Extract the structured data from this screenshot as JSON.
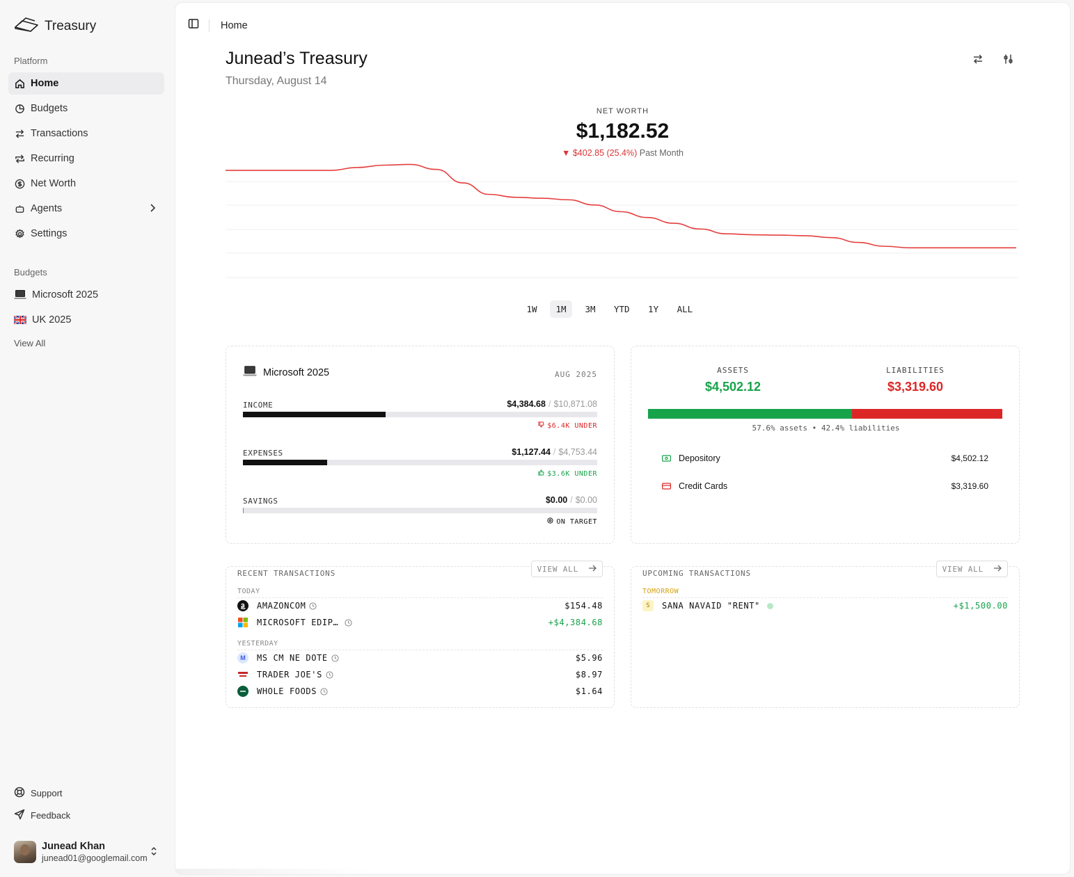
{
  "app": {
    "name": "Treasury"
  },
  "sidebar": {
    "platform_label": "Platform",
    "items": [
      {
        "label": "Home",
        "icon": "home-icon",
        "active": true
      },
      {
        "label": "Budgets",
        "icon": "pie-chart-icon"
      },
      {
        "label": "Transactions",
        "icon": "arrows-exchange-icon"
      },
      {
        "label": "Recurring",
        "icon": "repeat-icon"
      },
      {
        "label": "Net Worth",
        "icon": "dollar-circle-icon"
      },
      {
        "label": "Agents",
        "icon": "bot-icon",
        "has_submenu": true
      },
      {
        "label": "Settings",
        "icon": "gear-icon"
      }
    ],
    "budgets_label": "Budgets",
    "budgets": [
      {
        "label": "Microsoft 2025",
        "icon": "laptop-emoji"
      },
      {
        "label": "UK 2025",
        "icon": "uk-flag-emoji"
      }
    ],
    "view_all": "View All",
    "support": "Support",
    "feedback": "Feedback",
    "user": {
      "name": "Junead Khan",
      "email": "junead01@googlemail.com"
    }
  },
  "header": {
    "breadcrumb": "Home",
    "title": "Junead’s Treasury",
    "date": "Thursday, August 14"
  },
  "net_worth": {
    "label": "NET WORTH",
    "value": "$1,182.52",
    "change": "▼ $402.85 (25.4%)",
    "period": "Past Month"
  },
  "chart_data": {
    "type": "line",
    "title": "",
    "xlabel": "",
    "ylabel": "",
    "x": [
      0,
      1,
      2,
      3,
      4,
      5,
      6,
      7,
      8,
      9,
      10,
      11,
      12,
      13,
      14,
      15,
      16,
      17,
      18,
      19,
      20,
      21,
      22,
      23,
      24,
      25,
      26,
      27,
      28,
      29,
      30
    ],
    "series": [
      {
        "values": [
          1585,
          1585,
          1585,
          1585,
          1585,
          1600,
          1612,
          1616,
          1590,
          1520,
          1460,
          1445,
          1440,
          1432,
          1405,
          1370,
          1340,
          1310,
          1280,
          1255,
          1250,
          1248,
          1245,
          1235,
          1210,
          1190,
          1182,
          1182,
          1182,
          1182,
          1182
        ]
      }
    ],
    "ylim": [
      1100,
      1650
    ],
    "grid": true,
    "line_color": "#e53e3e",
    "ranges": [
      "1W",
      "1M",
      "3M",
      "YTD",
      "1Y",
      "ALL"
    ],
    "active_range": "1M"
  },
  "budget_card": {
    "title": "Microsoft 2025",
    "period": "AUG 2025",
    "rows": [
      {
        "label": "INCOME",
        "value": "$4,384.68",
        "total": "$10,871.08",
        "fraction": 0.403,
        "note": "$6.4K UNDER",
        "note_color": "#dc2626",
        "note_icon": "thumbs-down-icon"
      },
      {
        "label": "EXPENSES",
        "value": "$1,127.44",
        "total": "$4,753.44",
        "fraction": 0.237,
        "note": "$3.6K UNDER",
        "note_color": "#16a34a",
        "note_icon": "thumbs-up-icon"
      },
      {
        "label": "SAVINGS",
        "value": "$0.00",
        "total": "$0.00",
        "fraction": 0.0,
        "note": "ON TARGET",
        "note_color": "#111111",
        "note_icon": "target-icon"
      }
    ]
  },
  "assets_liabilities": {
    "assets_label": "ASSETS",
    "assets_value": "$4,502.12",
    "liabilities_label": "LIABILITIES",
    "liabilities_value": "$3,319.60",
    "assets_fraction": 0.576,
    "caption": "57.6% assets • 42.4% liabilities",
    "accounts": [
      {
        "name": "Depository",
        "amount": "$4,502.12",
        "icon": "cash-icon",
        "color": "#16a34a"
      },
      {
        "name": "Credit Cards",
        "amount": "$3,319.60",
        "icon": "credit-card-icon",
        "color": "#dc2626"
      }
    ],
    "assets_color": "#16a34a",
    "liabilities_color": "#dc2626"
  },
  "recent_transactions": {
    "title": "RECENT TRANSACTIONS",
    "view_all": "VIEW ALL",
    "groups": [
      {
        "label": "TODAY",
        "items": [
          {
            "name": "AMAZONCOM",
            "amount": "$154.48",
            "positive": false,
            "logo": "amazon-logo"
          },
          {
            "name": "MICROSOFT EDIP…",
            "amount": "+$4,384.68",
            "positive": true,
            "logo": "microsoft-logo"
          }
        ]
      },
      {
        "label": "YESTERDAY",
        "items": [
          {
            "name": "MS CM NE DOTE",
            "amount": "$5.96",
            "positive": false,
            "logo": "m-initial-logo",
            "initial": "M"
          },
          {
            "name": "TRADER JOE'S",
            "amount": "$8.97",
            "positive": false,
            "logo": "trader-joes-logo"
          },
          {
            "name": "WHOLE FOODS",
            "amount": "$1.64",
            "positive": false,
            "logo": "whole-foods-logo"
          }
        ]
      }
    ]
  },
  "upcoming_transactions": {
    "title": "UPCOMING TRANSACTIONS",
    "view_all": "VIEW ALL",
    "groups": [
      {
        "label": "TOMORROW",
        "items": [
          {
            "name": "SANA NAVAID \"RENT\"",
            "amount": "+$1,500.00",
            "positive": true,
            "initial": "S"
          }
        ]
      }
    ]
  }
}
